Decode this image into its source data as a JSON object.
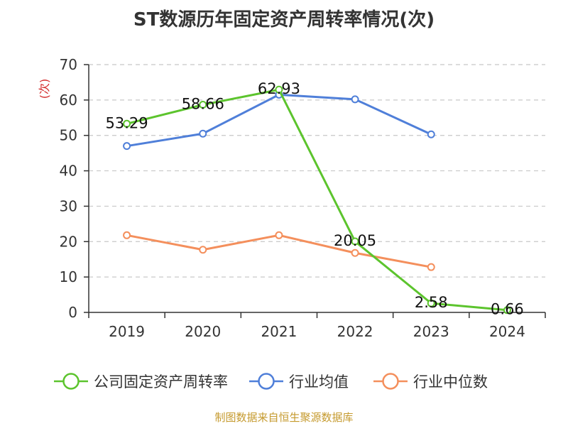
{
  "chart_data": {
    "type": "line",
    "title": "ST数源历年固定资产周转率情况(次)",
    "ylabel": "(次)",
    "xlabel": "",
    "categories": [
      "2019",
      "2020",
      "2021",
      "2022",
      "2023",
      "2024"
    ],
    "ylim": [
      0,
      70
    ],
    "yticks": [
      0,
      10,
      20,
      30,
      40,
      50,
      60,
      70
    ],
    "grid": true,
    "legend_position": "bottom",
    "series": [
      {
        "name": "公司固定资产周转率",
        "color": "#5cc42d",
        "values": [
          53.29,
          58.66,
          62.93,
          20.05,
          2.58,
          0.66
        ],
        "labels": [
          "53.29",
          "58.66",
          "62.93",
          "20.05",
          "2.58",
          "0.66"
        ]
      },
      {
        "name": "行业均值",
        "color": "#4f7fd9",
        "values": [
          47,
          50.5,
          61.5,
          60.2,
          50.3,
          null
        ]
      },
      {
        "name": "行业中位数",
        "color": "#f48f5c",
        "values": [
          21.8,
          17.7,
          21.8,
          16.8,
          12.8,
          null
        ]
      }
    ],
    "source": "制图数据来自恒生聚源数据库"
  }
}
